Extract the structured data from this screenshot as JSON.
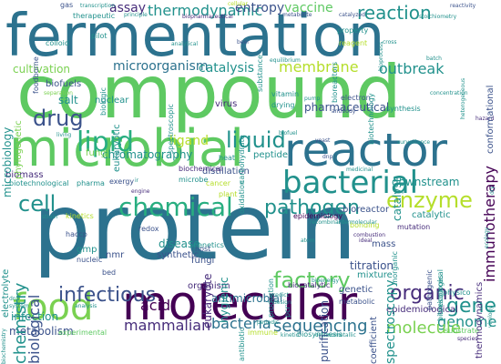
{
  "words": {
    "fermentation": "fermentation",
    "compound": "compound",
    "protein": "protein",
    "microbial": "microbial",
    "reactor": "reactor",
    "molecular": "molecular",
    "bacterial": "bacterial",
    "chemical": "chemical",
    "food": "food",
    "lipid": "lipid",
    "cell": "cell",
    "drug": "drug",
    "liquid": "liquid",
    "enzyme": "enzyme",
    "pathogen": "pathogen",
    "infectious": "infectious",
    "factory": "factory",
    "organic": "organic",
    "gene": "gene",
    "genome": "genome",
    "molecule": "molecule",
    "sequencing": "sequencing",
    "mammalian": "mammalian",
    "bacteria": "bacteria",
    "acid": "acid",
    "chemistry": "chemistry",
    "biological": "biological",
    "infection": "infection",
    "metabolism": "metabolism",
    "thermodynamic": "thermodynamic",
    "assay": "assay",
    "entropy": "entropy",
    "vaccine": "vaccine",
    "reaction": "reaction",
    "membrane": "membrane",
    "outbreak": "outbreak",
    "microorganism": "microorganism",
    "catalysis": "catalysis",
    "cultivation": "cultivation",
    "ligand": "ligand",
    "chromatography": "chromatography",
    "immunotherapy": "immunotherapy",
    "pharmaceutical": "pharmaceutical",
    "downstream": "downstream",
    "antimicrobial": "antimicrobial",
    "epidemiological": "epidemiological",
    "titration": "titration",
    "mixture": "mixture",
    "spectroscopy": "spectroscopy",
    "purification": "purification",
    "biofuels": "biofuels",
    "salt": "salt",
    "biomass": "biomass",
    "eukaryote": "eukaryote",
    "disease": "disease",
    "synthetic": "synthetic",
    "bioreactor": "bioreactor",
    "epidemiology": "epidemiology",
    "nuclear": "nuclear",
    "eukaryotic": "eukaryotic",
    "microbiology": "microbiology",
    "phylogenetic": "phylogenetic",
    "virus": "virus",
    "vitamin": "vitamin",
    "drying": "drying",
    "peptide": "peptide",
    "distillation": "distillation",
    "heat": "heat",
    "plant": "plant",
    "cancer": "cancer",
    "fungi": "fungi",
    "fungi2": "fungi",
    "exergy": "exergy",
    "genetics": "genetics",
    "organism": "organism",
    "hygienic": "hygienic",
    "host": "host",
    "redox": "redox",
    "nmr": "nmr",
    "gmp": "gmp",
    "nucleic": "nucleic",
    "bed": "bed",
    "kinetics": "kinetics",
    "haccp": "haccp",
    "electrolyte": "electrolyte",
    "biotechnological": "biotechnological",
    "pharma": "pharma",
    "biochemical": "biochemical",
    "microbe": "microbe",
    "oxidation": "oxidation",
    "catalyst": "catalyst",
    "catalytic": "catalytic",
    "bonding": "bonding",
    "mutation": "mutation",
    "mass": "mass",
    "genetic": "genetic",
    "metabolic": "metabolic",
    "coefficient": "coefficient",
    "biocatalytic": "biocatalytic",
    "thermodynamics": "thermodynamics",
    "pathogenic": "pathogenic",
    "bioresources": "bioresources",
    "physico": "physico",
    "predict": "predict",
    "design": "design",
    "experimental": "experimental",
    "substrate": "substrate",
    "biosynthesis": "biosynthesis",
    "immune": "immune",
    "antibiotic": "antibiotic",
    "production": "production",
    "synthesis": "synthesis",
    "foodborne": "foodborne",
    "colloid": "colloid",
    "therapeutic": "therapeutic",
    "pilot": "pilot",
    "biologic": "biologic",
    "gas": "gas",
    "transcription": "transcription",
    "principle": "principle",
    "cellular": "cellular",
    "biomanufacturing": "biopharmaceutical",
    "metabolite": "metabolite",
    "catalyzed": "catalyzed",
    "property": "property",
    "reagent": "reagent",
    "reactivity": "reactivity",
    "stoichiometry": "stoichiometry",
    "conformational": "conformational",
    "bioreactors": "bioreactors",
    "biotechnology": "biotechnology",
    "electron": "electron",
    "antibody": "antibody",
    "carbohydrate": "carbohydrate",
    "equilibrium": "equilibrium",
    "analytical": "analytical",
    "beer": "beer",
    "substance": "substance",
    "batch": "batch",
    "heterogeneous": "heterogeneous",
    "yeast": "yeast",
    "hazard": "hazard",
    "surveillance": "surveillance",
    "toxicological": "toxicological",
    "recombinant": "recombinant",
    "intermolecular": "intermolecular",
    "combustion": "combustion",
    "idea": "ideal",
    "atom": "atom",
    "bioenergy": "bioenergy",
    "engine": "engine",
    "strain": "strain",
    "dna": "dna",
    "system": "system",
    "analysis": "analysis",
    "living": "living",
    "separation": "separation",
    "spectroscopic": "spectroscopic",
    "biofuel": "biofuel",
    "dnp": "dnp",
    "medicinal": "medicinal",
    "inorganic": "inorganic",
    "biochemistry": "biochemistry",
    "kinetic": "kinetic",
    "organometallic": "organometallic",
    "periodic": "periodic",
    "pcr": "pcr",
    "virology": "virology",
    "species": "species",
    "ecology": "ecology",
    "pump": "pump",
    "ir": "ir",
    "dry": "dry",
    "cross": "cross",
    "bioprocess": "bioprocess",
    "concentration": "concentration"
  }
}
